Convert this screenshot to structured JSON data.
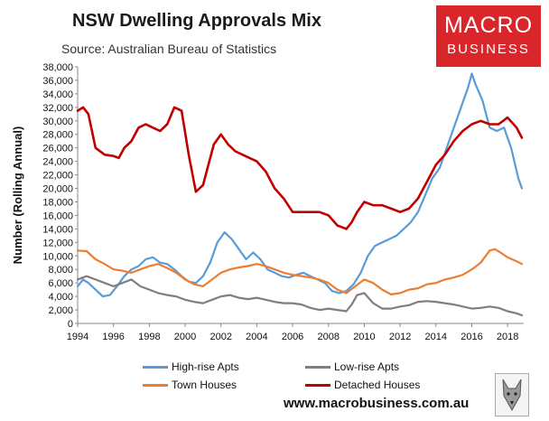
{
  "header": {
    "title": "NSW Dwelling Approvals Mix",
    "source": "Source: Australian Bureau of Statistics"
  },
  "logo": {
    "line1": "MACRO",
    "line2": "BUSINESS"
  },
  "footer": {
    "website": "www.macrobusiness.com.au"
  },
  "colors": {
    "high_rise": "#5b9bd5",
    "low_rise": "#7f7f7f",
    "town_houses": "#ed7d31",
    "detached": "#c00000",
    "logo_bg": "#d9262b"
  },
  "chart_data": {
    "type": "line",
    "title": "NSW Dwelling Approvals Mix",
    "xlabel": "",
    "ylabel": "Number (Rolling Annual)",
    "xlim": [
      1994,
      2018.9
    ],
    "ylim": [
      0,
      38000
    ],
    "xticks": [
      1994,
      1996,
      1998,
      2000,
      2002,
      2004,
      2006,
      2008,
      2010,
      2012,
      2014,
      2016,
      2018
    ],
    "xtick_labels": [
      "1994",
      "1996",
      "1998",
      "2000",
      "2002",
      "2004",
      "2006",
      "2008",
      "2010",
      "2012",
      "2014",
      "2016",
      "2018"
    ],
    "yticks": [
      0,
      2000,
      4000,
      6000,
      8000,
      10000,
      12000,
      14000,
      16000,
      18000,
      20000,
      22000,
      24000,
      26000,
      28000,
      30000,
      32000,
      34000,
      36000,
      38000
    ],
    "ytick_labels": [
      "0",
      "2,000",
      "4,000",
      "6,000",
      "8,000",
      "10,000",
      "12,000",
      "14,000",
      "16,000",
      "18,000",
      "20,000",
      "22,000",
      "24,000",
      "26,000",
      "28,000",
      "30,000",
      "32,000",
      "34,000",
      "36,000",
      "38,000"
    ],
    "grid": false,
    "legend_position": "bottom",
    "series": [
      {
        "name": "High-rise Apts",
        "color": "#5b9bd5",
        "x": [
          1994,
          1994.3,
          1994.6,
          1995,
          1995.4,
          1995.8,
          1996.2,
          1996.6,
          1997,
          1997.4,
          1997.8,
          1998.2,
          1998.6,
          1999,
          1999.4,
          1999.8,
          2000.2,
          2000.6,
          2001,
          2001.4,
          2001.8,
          2002.2,
          2002.6,
          2003,
          2003.4,
          2003.8,
          2004.2,
          2004.6,
          2005,
          2005.4,
          2005.8,
          2006.2,
          2006.6,
          2007,
          2007.4,
          2007.8,
          2008.2,
          2008.6,
          2009,
          2009.4,
          2009.8,
          2010.2,
          2010.6,
          2011,
          2011.4,
          2011.8,
          2012.2,
          2012.6,
          2013,
          2013.4,
          2013.8,
          2014.2,
          2014.6,
          2015,
          2015.4,
          2015.8,
          2016,
          2016.2,
          2016.6,
          2017,
          2017.4,
          2017.8,
          2018.2,
          2018.6,
          2018.8
        ],
        "values": [
          5500,
          6500,
          6000,
          5000,
          4000,
          4200,
          5500,
          7000,
          8000,
          8500,
          9500,
          9800,
          9000,
          8800,
          8000,
          7000,
          6200,
          6000,
          7000,
          9000,
          12000,
          13500,
          12500,
          11000,
          9500,
          10500,
          9500,
          8000,
          7500,
          7000,
          6800,
          7200,
          7500,
          7000,
          6500,
          6000,
          4800,
          4500,
          4800,
          5800,
          7500,
          10000,
          11500,
          12000,
          12500,
          13000,
          14000,
          15000,
          16500,
          19000,
          21500,
          23000,
          26000,
          29000,
          32000,
          35000,
          37000,
          35500,
          33000,
          29000,
          28500,
          29000,
          26000,
          21500,
          20000
        ]
      },
      {
        "name": "Low-rise Apts",
        "color": "#7f7f7f",
        "x": [
          1994,
          1994.5,
          1995,
          1995.5,
          1996,
          1996.5,
          1997,
          1997.5,
          1998,
          1998.5,
          1999,
          1999.5,
          2000,
          2000.5,
          2001,
          2001.5,
          2002,
          2002.5,
          2003,
          2003.5,
          2004,
          2004.5,
          2005,
          2005.5,
          2006,
          2006.5,
          2007,
          2007.5,
          2008,
          2008.5,
          2009,
          2009.3,
          2009.6,
          2010,
          2010.5,
          2011,
          2011.5,
          2012,
          2012.5,
          2013,
          2013.5,
          2014,
          2014.5,
          2015,
          2015.5,
          2016,
          2016.5,
          2017,
          2017.5,
          2018,
          2018.5,
          2018.8
        ],
        "values": [
          6500,
          7000,
          6500,
          6000,
          5500,
          6000,
          6500,
          5500,
          5000,
          4500,
          4200,
          4000,
          3500,
          3200,
          3000,
          3500,
          4000,
          4200,
          3800,
          3600,
          3800,
          3500,
          3200,
          3000,
          3000,
          2800,
          2300,
          2000,
          2200,
          2000,
          1800,
          2800,
          4200,
          4500,
          3000,
          2200,
          2200,
          2500,
          2700,
          3200,
          3300,
          3200,
          3000,
          2800,
          2500,
          2200,
          2300,
          2500,
          2300,
          1800,
          1500,
          1200
        ]
      },
      {
        "name": "Town Houses",
        "color": "#ed7d31",
        "x": [
          1994,
          1994.5,
          1995,
          1995.5,
          1996,
          1996.5,
          1997,
          1997.5,
          1998,
          1998.5,
          1999,
          1999.5,
          2000,
          2000.5,
          2001,
          2001.5,
          2002,
          2002.5,
          2003,
          2003.5,
          2004,
          2004.5,
          2005,
          2005.5,
          2006,
          2006.5,
          2007,
          2007.5,
          2008,
          2008.5,
          2009,
          2009.5,
          2010,
          2010.5,
          2011,
          2011.5,
          2012,
          2012.5,
          2013,
          2013.5,
          2014,
          2014.5,
          2015,
          2015.5,
          2016,
          2016.5,
          2017,
          2017.3,
          2017.6,
          2018,
          2018.5,
          2018.8
        ],
        "values": [
          10800,
          10700,
          9500,
          8800,
          8000,
          7800,
          7500,
          8000,
          8500,
          8800,
          8200,
          7500,
          6500,
          5800,
          5500,
          6500,
          7500,
          8000,
          8300,
          8500,
          8800,
          8500,
          8000,
          7500,
          7200,
          7000,
          6800,
          6500,
          6000,
          5000,
          4500,
          5500,
          6500,
          6000,
          5000,
          4300,
          4500,
          5000,
          5200,
          5800,
          6000,
          6500,
          6800,
          7200,
          8000,
          9000,
          10800,
          11000,
          10500,
          9800,
          9200,
          8800
        ]
      },
      {
        "name": "Detached Houses",
        "color": "#c00000",
        "x": [
          1994,
          1994.3,
          1994.6,
          1995,
          1995.5,
          1996,
          1996.3,
          1996.6,
          1997,
          1997.4,
          1997.8,
          1998.2,
          1998.6,
          1999,
          1999.4,
          1999.8,
          2000.2,
          2000.6,
          2001,
          2001.3,
          2001.6,
          2002,
          2002.4,
          2002.8,
          2003.2,
          2003.6,
          2004,
          2004.5,
          2005,
          2005.5,
          2006,
          2006.5,
          2007,
          2007.5,
          2008,
          2008.5,
          2009,
          2009.3,
          2009.6,
          2010,
          2010.5,
          2011,
          2011.5,
          2012,
          2012.5,
          2013,
          2013.5,
          2014,
          2014.5,
          2015,
          2015.5,
          2016,
          2016.5,
          2017,
          2017.5,
          2018,
          2018.5,
          2018.8
        ],
        "values": [
          31500,
          32000,
          31000,
          26000,
          25000,
          24800,
          24500,
          26000,
          27000,
          29000,
          29500,
          29000,
          28500,
          29500,
          32000,
          31500,
          25000,
          19500,
          20500,
          23500,
          26500,
          28000,
          26500,
          25500,
          25000,
          24500,
          24000,
          22500,
          20000,
          18500,
          16500,
          16500,
          16500,
          16500,
          16000,
          14500,
          14000,
          15000,
          16500,
          18000,
          17500,
          17500,
          17000,
          16500,
          17000,
          18500,
          21000,
          23500,
          25000,
          27000,
          28500,
          29500,
          30000,
          29500,
          29500,
          30500,
          29000,
          27500
        ]
      }
    ]
  }
}
